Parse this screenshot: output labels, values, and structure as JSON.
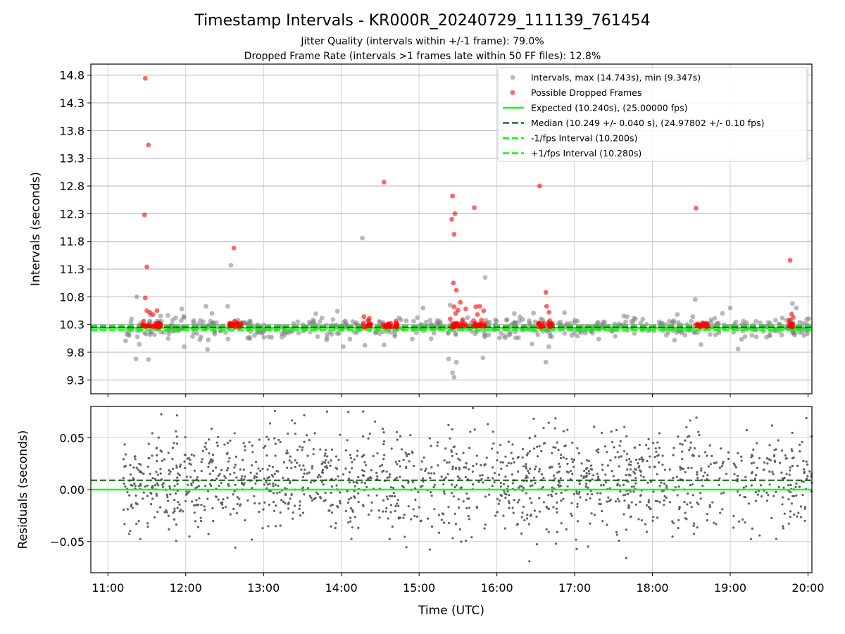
{
  "title": "Timestamp Intervals - KR000R_20240729_111139_761454",
  "subtitle_lines": [
    "Jitter Quality (intervals within +/-1 frame): 79.0%",
    "Dropped Frame Rate (intervals >1 frames late within 50 FF files): 12.8%"
  ],
  "colors": {
    "intervals": "#808080",
    "dropped": "#ff0000",
    "expected": "#00ff00",
    "median": "#006400",
    "fps_band": "#00ff00",
    "residuals": "#606060"
  },
  "chart_data": [
    {
      "type": "scatter",
      "panel": "intervals",
      "xlabel": "",
      "ylabel": "Intervals (seconds)",
      "x_unit": "hours UTC",
      "xlim": [
        10.78,
        20.05
      ],
      "ylim": [
        9.05,
        15.0
      ],
      "yticks": [
        9.3,
        9.8,
        10.3,
        10.8,
        11.3,
        11.8,
        12.3,
        12.8,
        13.3,
        13.8,
        14.3,
        14.8
      ],
      "ytick_labels": [
        "9.3",
        "9.8",
        "10.3",
        "10.8",
        "11.3",
        "11.8",
        "12.3",
        "12.8",
        "13.3",
        "13.8",
        "14.3",
        "14.8"
      ],
      "grid": true,
      "legend_position": "top-right",
      "legend": [
        "Intervals, max (14.743s), min (9.347s)",
        "Possible Dropped Frames",
        "Expected (10.240s), (25.00000 fps)",
        "Median (10.249 +/- 0.040 s), (24.97802 +/- 0.10 fps)",
        "-1/fps Interval (10.200s)",
        "+1/fps Interval (10.280s)"
      ],
      "reference_lines": {
        "expected": 10.24,
        "median": 10.249,
        "minus_fps": 10.2,
        "plus_fps": 10.28
      },
      "dropped_clusters": [
        [
          11.43,
          11.68
        ],
        [
          12.56,
          12.72
        ],
        [
          14.27,
          14.38
        ],
        [
          14.53,
          14.72
        ],
        [
          15.42,
          15.62
        ],
        [
          15.68,
          15.85
        ],
        [
          16.53,
          16.72
        ],
        [
          18.54,
          18.72
        ],
        [
          19.72,
          19.82
        ]
      ],
      "series": [
        {
          "name": "Possible Dropped Frames",
          "points": [
            [
              11.48,
              14.743
            ],
            [
              11.52,
              13.54
            ],
            [
              11.47,
              12.28
            ],
            [
              11.5,
              11.34
            ],
            [
              11.48,
              10.78
            ],
            [
              11.5,
              10.55
            ],
            [
              11.54,
              10.52
            ],
            [
              11.63,
              10.55
            ],
            [
              11.46,
              10.36
            ],
            [
              11.58,
              10.48
            ],
            [
              12.62,
              11.68
            ],
            [
              12.63,
              10.36
            ],
            [
              12.58,
              10.32
            ],
            [
              14.29,
              10.44
            ],
            [
              14.36,
              10.41
            ],
            [
              14.34,
              10.37
            ],
            [
              14.55,
              12.87
            ],
            [
              14.6,
              10.31
            ],
            [
              14.7,
              10.36
            ],
            [
              15.43,
              12.62
            ],
            [
              15.42,
              12.2
            ],
            [
              15.46,
              12.3
            ],
            [
              15.45,
              11.93
            ],
            [
              15.44,
              11.05
            ],
            [
              15.48,
              10.92
            ],
            [
              15.45,
              10.62
            ],
            [
              15.5,
              10.56
            ],
            [
              15.53,
              10.7
            ],
            [
              15.47,
              10.5
            ],
            [
              15.6,
              10.58
            ],
            [
              15.56,
              10.39
            ],
            [
              15.4,
              10.4
            ],
            [
              15.71,
              12.41
            ],
            [
              15.73,
              10.62
            ],
            [
              15.78,
              10.63
            ],
            [
              15.83,
              10.55
            ],
            [
              15.75,
              10.48
            ],
            [
              15.8,
              10.38
            ],
            [
              15.7,
              10.37
            ],
            [
              16.55,
              12.8
            ],
            [
              16.63,
              10.88
            ],
            [
              16.64,
              10.63
            ],
            [
              16.67,
              10.52
            ],
            [
              16.68,
              10.37
            ],
            [
              18.56,
              12.4
            ],
            [
              19.77,
              11.46
            ],
            [
              19.79,
              10.49
            ],
            [
              19.81,
              10.43
            ],
            [
              19.76,
              10.38
            ]
          ]
        }
      ]
    },
    {
      "type": "scatter",
      "panel": "residuals",
      "xlabel": "Time (UTC)",
      "ylabel": "Residuals (seconds)",
      "xlim": [
        10.78,
        20.05
      ],
      "ylim": [
        -0.08,
        0.08
      ],
      "yticks": [
        -0.05,
        0.0,
        0.05
      ],
      "ytick_labels": [
        "−0.05",
        "0.00",
        "0.05"
      ],
      "xticks": [
        11,
        12,
        13,
        14,
        15,
        16,
        17,
        18,
        19,
        20
      ],
      "xtick_labels": [
        "11:00",
        "12:00",
        "13:00",
        "14:00",
        "15:00",
        "16:00",
        "17:00",
        "18:00",
        "19:00",
        "20:00"
      ],
      "grid": true,
      "reference_lines": {
        "expected": 0.0,
        "median": 0.009
      },
      "series": [
        {
          "name": "",
          "x_range": [
            11.2,
            20.05
          ],
          "spread_seconds": 0.025
        }
      ]
    }
  ]
}
